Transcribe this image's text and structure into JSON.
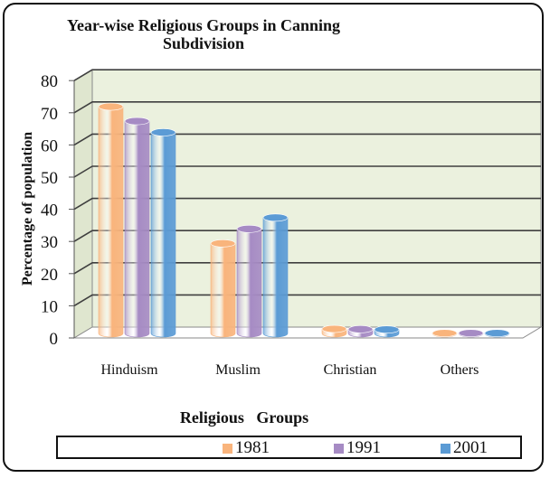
{
  "chart_data": {
    "type": "bar",
    "title_line1": "Year-wise Religious Groups in Canning",
    "title_line2": "Subdivision",
    "xlabel": "Religious   Groups",
    "ylabel": "Percentage of population",
    "categories": [
      "Hinduism",
      "Muslim",
      "Christian",
      "Others"
    ],
    "series": [
      {
        "name": "1981",
        "color": "#F9B47C",
        "values": [
          70.5,
          28.0,
          1.4,
          0.1
        ]
      },
      {
        "name": "1991",
        "color": "#A68BC4",
        "values": [
          66.0,
          32.5,
          1.3,
          0.1
        ]
      },
      {
        "name": "2001",
        "color": "#5B9BD5",
        "values": [
          62.5,
          36.0,
          1.2,
          0.1
        ]
      }
    ],
    "ylim": [
      0,
      80
    ],
    "yticks": [
      "0",
      "10",
      "20",
      "30",
      "40",
      "50",
      "60",
      "70",
      "80"
    ],
    "grid": true,
    "legend": "bottom",
    "wall_color": "#EBF1DE"
  }
}
